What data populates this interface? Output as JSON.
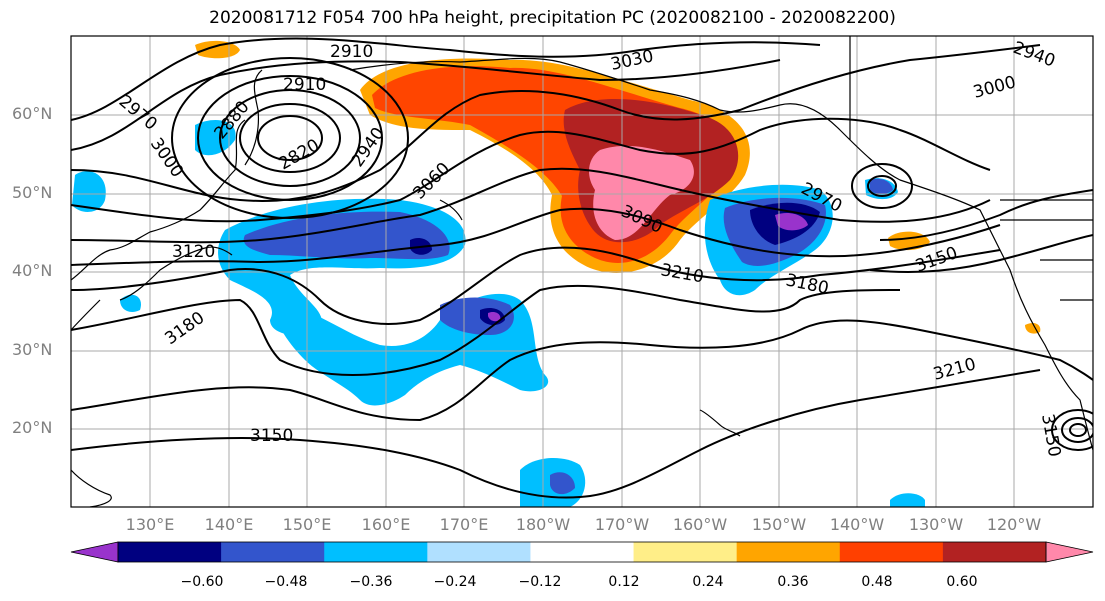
{
  "title": "2020081712 F054 700 hPa height, precipitation PC (2020082100 - 2020082200)",
  "lat_labels": [
    "60°N",
    "50°N",
    "40°N",
    "30°N",
    "20°N"
  ],
  "lon_labels": [
    "130°E",
    "140°E",
    "150°E",
    "160°E",
    "170°E",
    "180°W",
    "170°W",
    "160°W",
    "150°W",
    "140°W",
    "130°W",
    "120°W"
  ],
  "contour_labels": [
    "2910",
    "2910",
    "3030",
    "2940",
    "2970",
    "3000",
    "2880",
    "2820",
    "2940",
    "3060",
    "3000",
    "2970",
    "3090",
    "3120",
    "3210",
    "3180",
    "3150",
    "3180",
    "3210",
    "3150",
    "3150"
  ],
  "colorbar": {
    "ticks": [
      "−0.60",
      "−0.48",
      "−0.36",
      "−0.24",
      "−0.12",
      "0.12",
      "0.24",
      "0.36",
      "0.48",
      "0.60"
    ],
    "colors": [
      "#9933cc",
      "#000080",
      "#3355cc",
      "#00bfff",
      "#b0e0ff",
      "#ffffff",
      "#ffee88",
      "#ffa500",
      "#ff4000",
      "#b22222",
      "#ff88aa"
    ]
  }
}
